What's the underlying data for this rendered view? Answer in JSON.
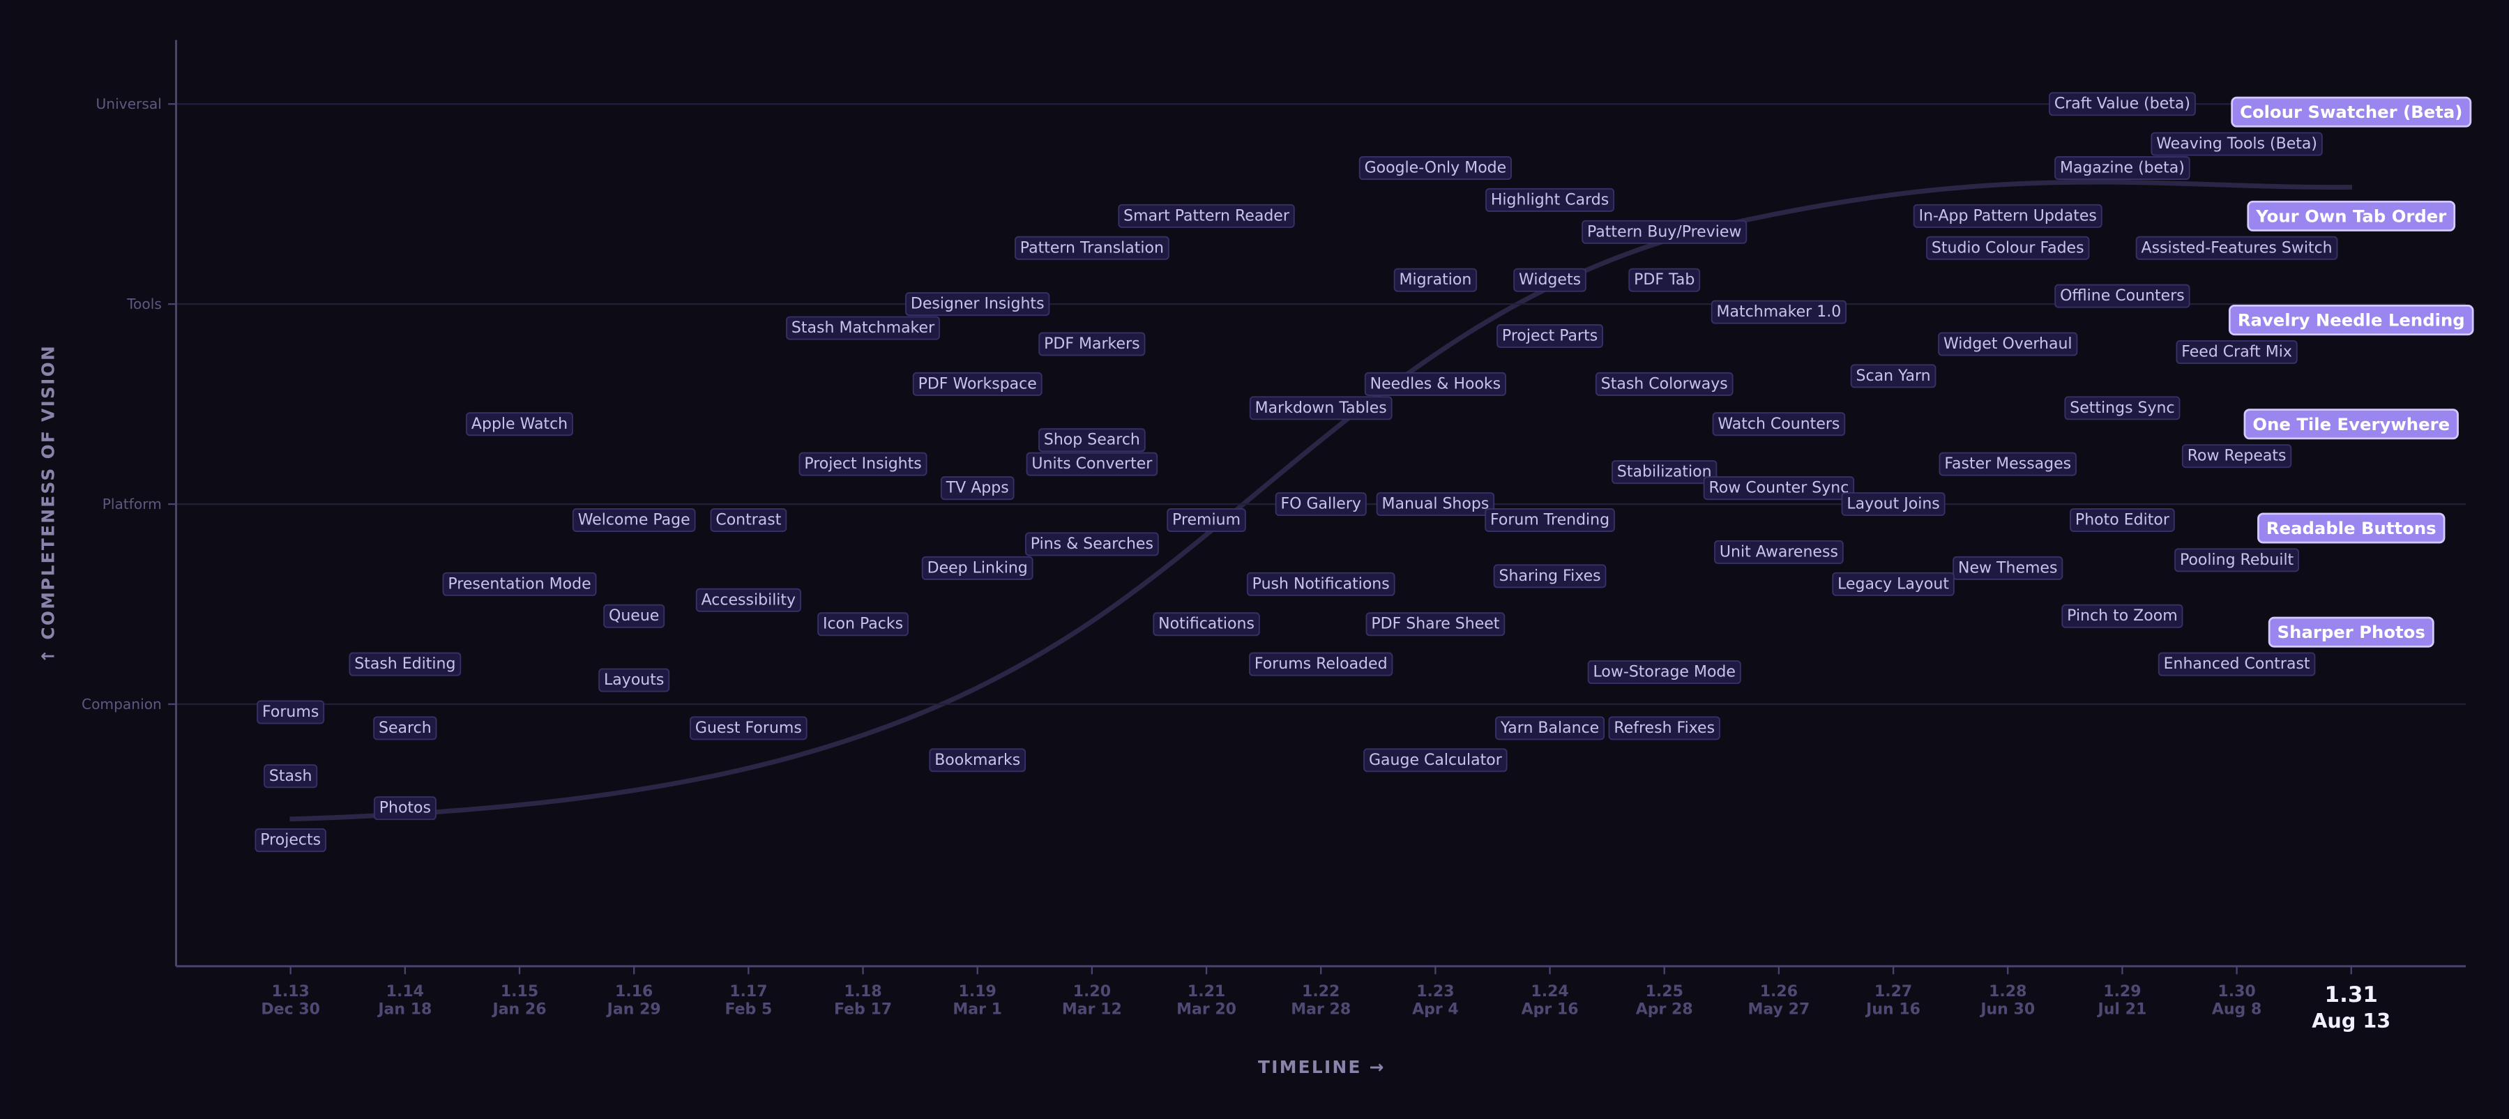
{
  "chart_data": {
    "type": "label-scatter",
    "x_label": "TIMELINE →",
    "y_label": "↑ COMPLETENESS OF VISION",
    "xlim": [
      1.12,
      1.32
    ],
    "ylim": [
      -0.31,
      4.32
    ],
    "xticks": [
      1.13,
      1.14,
      1.15,
      1.16,
      1.17,
      1.18,
      1.19,
      {
        "value": 1.2,
        "label": "1.20"
      },
      1.21,
      1.22,
      1.23,
      1.24,
      1.25,
      1.26,
      1.27,
      1.28,
      1.29,
      {
        "value": 1.3,
        "label": "1.30"
      },
      1.31
    ],
    "xtick_dates": [
      "Dec 30",
      "Jan 18",
      "Jan 26",
      "Jan 29",
      "Feb 5",
      "Feb 17",
      "Mar 1",
      "Mar 12",
      "Mar 20",
      "Mar 28",
      "Apr 4",
      "Apr 16",
      "Apr 28",
      "May 27",
      "Jun 16",
      "Jun 30",
      "Jul 21",
      "Aug 8",
      "Aug 13"
    ],
    "current_version": 1.31,
    "yticks": [
      {
        "value": 1,
        "label": "Companion"
      },
      {
        "value": 2,
        "label": "Platform"
      },
      {
        "value": 3,
        "label": "Tools"
      },
      {
        "value": 4,
        "label": "Universal"
      }
    ],
    "grid": true,
    "points": [
      {
        "label": "Craft Value (beta)",
        "x": 1.29,
        "y": 4.0
      },
      {
        "label": "Colour Swatcher (Beta)",
        "x": 1.31,
        "y": 3.96,
        "featured": true
      },
      {
        "label": "Weaving Tools (Beta)",
        "x": 1.3,
        "y": 3.8
      },
      {
        "label": "Google-Only Mode",
        "x": 1.23,
        "y": 3.68
      },
      {
        "label": "Magazine (beta)",
        "x": 1.29,
        "y": 3.68
      },
      {
        "label": "Highlight Cards",
        "x": 1.24,
        "y": 3.52
      },
      {
        "label": "Smart Pattern Reader",
        "x": 1.21,
        "y": 3.44
      },
      {
        "label": "In-App Pattern Updates",
        "x": 1.28,
        "y": 3.44
      },
      {
        "label": "Your Own Tab Order",
        "x": 1.31,
        "y": 3.44,
        "featured": true
      },
      {
        "label": "Pattern Buy/Preview",
        "x": 1.25,
        "y": 3.36
      },
      {
        "label": "Pattern Translation",
        "x": 1.2,
        "y": 3.28
      },
      {
        "label": "Studio Colour Fades",
        "x": 1.28,
        "y": 3.28
      },
      {
        "label": "Assisted-Features Switch",
        "x": 1.3,
        "y": 3.28
      },
      {
        "label": "Migration",
        "x": 1.23,
        "y": 3.12
      },
      {
        "label": "Widgets",
        "x": 1.24,
        "y": 3.12
      },
      {
        "label": "PDF Tab",
        "x": 1.25,
        "y": 3.12
      },
      {
        "label": "Offline Counters",
        "x": 1.29,
        "y": 3.04
      },
      {
        "label": "Designer Insights",
        "x": 1.19,
        "y": 3.0
      },
      {
        "label": "Matchmaker 1.0",
        "x": 1.26,
        "y": 2.96
      },
      {
        "label": "Ravelry Needle Lending",
        "x": 1.31,
        "y": 2.92,
        "featured": true
      },
      {
        "label": "Stash Matchmaker",
        "x": 1.18,
        "y": 2.88
      },
      {
        "label": "Project Parts",
        "x": 1.24,
        "y": 2.84
      },
      {
        "label": "PDF Markers",
        "x": 1.2,
        "y": 2.8
      },
      {
        "label": "Widget Overhaul",
        "x": 1.28,
        "y": 2.8
      },
      {
        "label": "Feed Craft Mix",
        "x": 1.3,
        "y": 2.76
      },
      {
        "label": "Scan Yarn",
        "x": 1.27,
        "y": 2.64
      },
      {
        "label": "PDF Workspace",
        "x": 1.19,
        "y": 2.6
      },
      {
        "label": "Needles & Hooks",
        "x": 1.23,
        "y": 2.6
      },
      {
        "label": "Stash Colorways",
        "x": 1.25,
        "y": 2.6
      },
      {
        "label": "Markdown Tables",
        "x": 1.22,
        "y": 2.48
      },
      {
        "label": "Settings Sync",
        "x": 1.29,
        "y": 2.48
      },
      {
        "label": "Apple Watch",
        "x": 1.15,
        "y": 2.4
      },
      {
        "label": "Watch Counters",
        "x": 1.26,
        "y": 2.4
      },
      {
        "label": "One Tile Everywhere",
        "x": 1.31,
        "y": 2.4,
        "featured": true
      },
      {
        "label": "Shop Search",
        "x": 1.2,
        "y": 2.32
      },
      {
        "label": "Row Repeats",
        "x": 1.3,
        "y": 2.24
      },
      {
        "label": "Project Insights",
        "x": 1.18,
        "y": 2.2
      },
      {
        "label": "Units Converter",
        "x": 1.2,
        "y": 2.2
      },
      {
        "label": "Faster Messages",
        "x": 1.28,
        "y": 2.2
      },
      {
        "label": "Stabilization",
        "x": 1.25,
        "y": 2.16
      },
      {
        "label": "TV Apps",
        "x": 1.19,
        "y": 2.08
      },
      {
        "label": "Row Counter Sync",
        "x": 1.26,
        "y": 2.08
      },
      {
        "label": "FO Gallery",
        "x": 1.22,
        "y": 2.0
      },
      {
        "label": "Manual Shops",
        "x": 1.23,
        "y": 2.0
      },
      {
        "label": "Layout Joins",
        "x": 1.27,
        "y": 2.0
      },
      {
        "label": "Welcome Page",
        "x": 1.16,
        "y": 1.92
      },
      {
        "label": "Contrast",
        "x": 1.17,
        "y": 1.92
      },
      {
        "label": "Premium",
        "x": 1.21,
        "y": 1.92
      },
      {
        "label": "Forum Trending",
        "x": 1.24,
        "y": 1.92
      },
      {
        "label": "Photo Editor",
        "x": 1.29,
        "y": 1.92
      },
      {
        "label": "Readable Buttons",
        "x": 1.31,
        "y": 1.88,
        "featured": true
      },
      {
        "label": "Pins & Searches",
        "x": 1.2,
        "y": 1.8
      },
      {
        "label": "Unit Awareness",
        "x": 1.26,
        "y": 1.76
      },
      {
        "label": "Pooling Rebuilt",
        "x": 1.3,
        "y": 1.72
      },
      {
        "label": "Deep Linking",
        "x": 1.19,
        "y": 1.68
      },
      {
        "label": "New Themes",
        "x": 1.28,
        "y": 1.68
      },
      {
        "label": "Sharing Fixes",
        "x": 1.24,
        "y": 1.64
      },
      {
        "label": "Presentation Mode",
        "x": 1.15,
        "y": 1.6
      },
      {
        "label": "Push Notifications",
        "x": 1.22,
        "y": 1.6
      },
      {
        "label": "Legacy Layout",
        "x": 1.27,
        "y": 1.6
      },
      {
        "label": "Accessibility",
        "x": 1.17,
        "y": 1.52
      },
      {
        "label": "Queue",
        "x": 1.16,
        "y": 1.44
      },
      {
        "label": "Pinch to Zoom",
        "x": 1.29,
        "y": 1.44
      },
      {
        "label": "Icon Packs",
        "x": 1.18,
        "y": 1.4
      },
      {
        "label": "Notifications",
        "x": 1.21,
        "y": 1.4
      },
      {
        "label": "PDF Share Sheet",
        "x": 1.23,
        "y": 1.4
      },
      {
        "label": "Sharper Photos",
        "x": 1.31,
        "y": 1.36,
        "featured": true
      },
      {
        "label": "Stash Editing",
        "x": 1.14,
        "y": 1.2
      },
      {
        "label": "Forums Reloaded",
        "x": 1.22,
        "y": 1.2
      },
      {
        "label": "Enhanced Contrast",
        "x": 1.3,
        "y": 1.2
      },
      {
        "label": "Low-Storage Mode",
        "x": 1.25,
        "y": 1.16
      },
      {
        "label": "Layouts",
        "x": 1.16,
        "y": 1.12
      },
      {
        "label": "Forums",
        "x": 1.13,
        "y": 0.96
      },
      {
        "label": "Search",
        "x": 1.14,
        "y": 0.88
      },
      {
        "label": "Guest Forums",
        "x": 1.17,
        "y": 0.88
      },
      {
        "label": "Yarn Balance",
        "x": 1.24,
        "y": 0.88
      },
      {
        "label": "Refresh Fixes",
        "x": 1.25,
        "y": 0.88
      },
      {
        "label": "Bookmarks",
        "x": 1.19,
        "y": 0.72
      },
      {
        "label": "Gauge Calculator",
        "x": 1.23,
        "y": 0.72
      },
      {
        "label": "Stash",
        "x": 1.13,
        "y": 0.64
      },
      {
        "label": "Photos",
        "x": 1.14,
        "y": 0.48
      },
      {
        "label": "Projects",
        "x": 1.13,
        "y": 0.32
      }
    ]
  }
}
